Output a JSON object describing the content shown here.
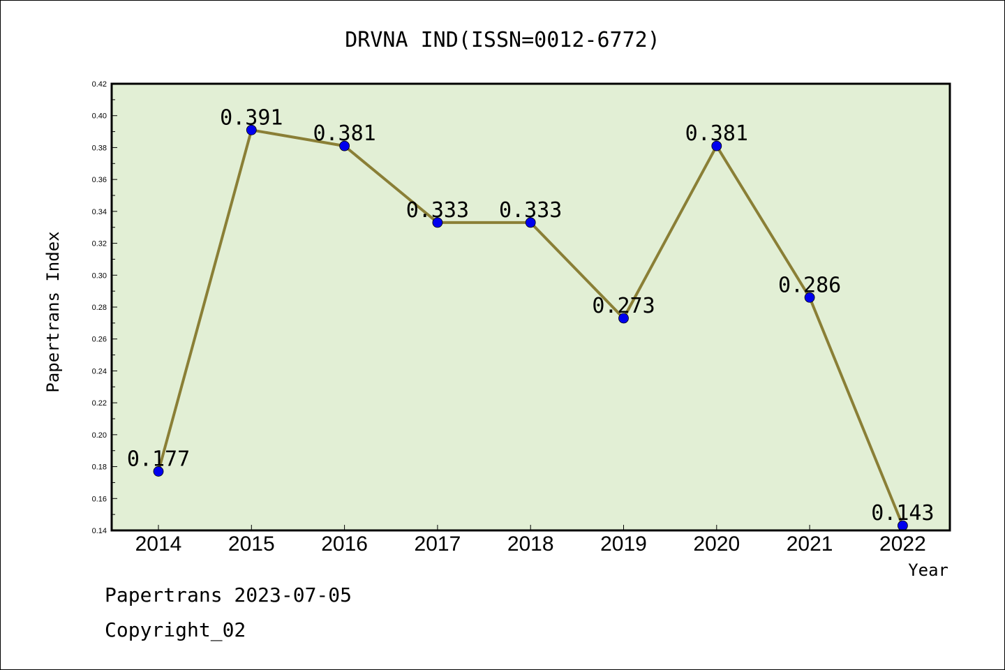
{
  "footer": {
    "line1": "Papertrans 2023-07-05",
    "line2": "Copyright_02"
  },
  "colors": {
    "plot_bg": "#e2efd5",
    "line": "#8a7f36",
    "marker": "#0000ee"
  },
  "chart_data": {
    "type": "line",
    "title": "DRVNA IND(ISSN=0012-6772)",
    "xlabel": "Year",
    "ylabel": "Papertrans Index",
    "categories": [
      "2014",
      "2015",
      "2016",
      "2017",
      "2018",
      "2019",
      "2020",
      "2021",
      "2022"
    ],
    "values": [
      0.177,
      0.391,
      0.381,
      0.333,
      0.333,
      0.273,
      0.381,
      0.286,
      0.143
    ],
    "data_labels": [
      "0.177",
      "0.391",
      "0.381",
      "0.333",
      "0.333",
      "0.273",
      "0.381",
      "0.286",
      "0.143"
    ],
    "ylim": [
      0.14,
      0.42
    ],
    "yticks": [
      "0.14",
      "0.16",
      "0.18",
      "0.20",
      "0.22",
      "0.24",
      "0.26",
      "0.28",
      "0.30",
      "0.32",
      "0.34",
      "0.36",
      "0.38",
      "0.40",
      "0.42"
    ],
    "grid": false,
    "legend": "none"
  }
}
